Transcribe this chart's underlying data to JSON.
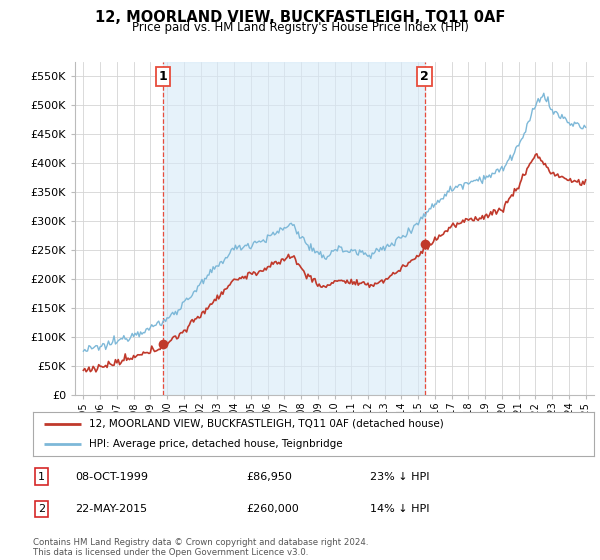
{
  "title": "12, MOORLAND VIEW, BUCKFASTLEIGH, TQ11 0AF",
  "subtitle": "Price paid vs. HM Land Registry's House Price Index (HPI)",
  "hpi_color": "#7db8d8",
  "hpi_fill_color": "#d6eaf8",
  "price_color": "#c0392b",
  "vline_color": "#e74c3c",
  "transaction_1": {
    "date": "08-OCT-1999",
    "price": 86950,
    "pct": "23%",
    "dir": "↓",
    "label": "1"
  },
  "transaction_2": {
    "date": "22-MAY-2015",
    "price": 260000,
    "pct": "14%",
    "dir": "↓",
    "label": "2"
  },
  "legend_price_label": "12, MOORLAND VIEW, BUCKFASTLEIGH, TQ11 0AF (detached house)",
  "legend_hpi_label": "HPI: Average price, detached house, Teignbridge",
  "footer": "Contains HM Land Registry data © Crown copyright and database right 2024.\nThis data is licensed under the Open Government Licence v3.0.",
  "ylim": [
    0,
    575000
  ],
  "yticks": [
    0,
    50000,
    100000,
    150000,
    200000,
    250000,
    300000,
    350000,
    400000,
    450000,
    500000,
    550000
  ],
  "ytick_labels": [
    "£0",
    "£50K",
    "£100K",
    "£150K",
    "£200K",
    "£250K",
    "£300K",
    "£350K",
    "£400K",
    "£450K",
    "£500K",
    "£550K"
  ],
  "xlabel_years": [
    1995,
    1996,
    1997,
    1998,
    1999,
    2000,
    2001,
    2002,
    2003,
    2004,
    2005,
    2006,
    2007,
    2008,
    2009,
    2010,
    2011,
    2012,
    2013,
    2014,
    2015,
    2016,
    2017,
    2018,
    2019,
    2020,
    2021,
    2022,
    2023,
    2024,
    2025
  ],
  "xlim": [
    1994.5,
    2025.5
  ],
  "transaction_1_x": 1999.77,
  "transaction_2_x": 2015.38,
  "background_color": "#ffffff",
  "grid_color": "#d5d5d5",
  "hpi_anchors_t": [
    1995.0,
    1996.0,
    1997.0,
    1998.0,
    1999.0,
    2000.0,
    2001.0,
    2002.0,
    2003.0,
    2004.0,
    2005.0,
    2006.0,
    2007.0,
    2007.5,
    2008.0,
    2009.0,
    2009.5,
    2010.0,
    2011.0,
    2012.0,
    2013.0,
    2014.0,
    2015.0,
    2016.0,
    2017.0,
    2018.0,
    2019.0,
    2020.0,
    2021.0,
    2021.5,
    2022.0,
    2022.5,
    2023.0,
    2024.0,
    2025.0
  ],
  "hpi_anchors_v": [
    76000,
    82000,
    92000,
    105000,
    115000,
    130000,
    158000,
    190000,
    222000,
    252000,
    260000,
    270000,
    288000,
    295000,
    272000,
    240000,
    238000,
    252000,
    248000,
    243000,
    252000,
    272000,
    298000,
    330000,
    355000,
    368000,
    375000,
    388000,
    430000,
    460000,
    500000,
    520000,
    490000,
    470000,
    460000
  ],
  "price_anchors_t": [
    1995.0,
    1996.0,
    1997.0,
    1998.0,
    1999.0,
    2000.0,
    2001.0,
    2002.0,
    2003.0,
    2004.0,
    2005.0,
    2006.0,
    2007.0,
    2007.5,
    2008.0,
    2009.0,
    2009.5,
    2010.0,
    2011.0,
    2012.0,
    2013.0,
    2014.0,
    2015.0,
    2016.0,
    2017.0,
    2018.0,
    2019.0,
    2020.0,
    2021.0,
    2021.5,
    2022.0,
    2022.5,
    2023.0,
    2024.0,
    2025.0
  ],
  "price_anchors_v": [
    42000,
    48000,
    55000,
    64000,
    74000,
    88000,
    110000,
    138000,
    168000,
    198000,
    208000,
    218000,
    235000,
    240000,
    218000,
    190000,
    185000,
    198000,
    194000,
    188000,
    198000,
    218000,
    240000,
    268000,
    290000,
    302000,
    308000,
    320000,
    360000,
    390000,
    415000,
    400000,
    382000,
    370000,
    365000
  ],
  "noise_hpi": 3500,
  "noise_price": 2800
}
